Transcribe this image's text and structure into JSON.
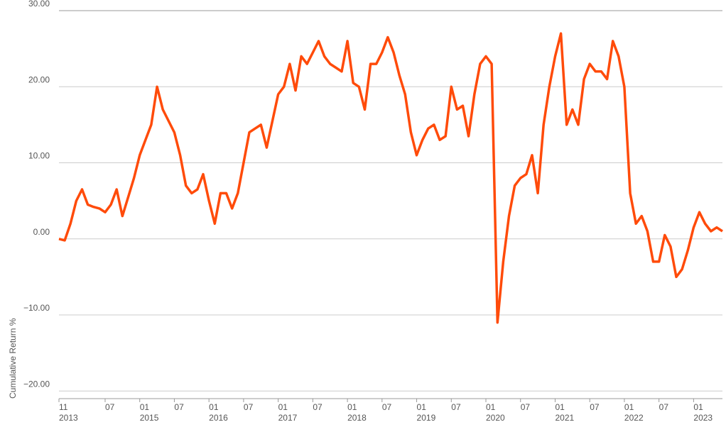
{
  "chart_data": {
    "type": "line",
    "y_label": "Cumulative Return %",
    "x": [
      "2013-11",
      "2013-12",
      "2014-01",
      "2014-02",
      "2014-03",
      "2014-04",
      "2014-05",
      "2014-06",
      "2014-07",
      "2014-08",
      "2014-09",
      "2014-10",
      "2014-11",
      "2014-12",
      "2015-01",
      "2015-02",
      "2015-03",
      "2015-04",
      "2015-05",
      "2015-06",
      "2015-07",
      "2015-08",
      "2015-09",
      "2015-10",
      "2015-11",
      "2015-12",
      "2016-01",
      "2016-02",
      "2016-03",
      "2016-04",
      "2016-05",
      "2016-06",
      "2016-07",
      "2016-08",
      "2016-09",
      "2016-10",
      "2016-11",
      "2016-12",
      "2017-01",
      "2017-02",
      "2017-03",
      "2017-04",
      "2017-05",
      "2017-06",
      "2017-07",
      "2017-08",
      "2017-09",
      "2017-10",
      "2017-11",
      "2017-12",
      "2018-01",
      "2018-02",
      "2018-03",
      "2018-04",
      "2018-05",
      "2018-06",
      "2018-07",
      "2018-08",
      "2018-09",
      "2018-10",
      "2018-11",
      "2018-12",
      "2019-01",
      "2019-02",
      "2019-03",
      "2019-04",
      "2019-05",
      "2019-06",
      "2019-07",
      "2019-08",
      "2019-09",
      "2019-10",
      "2019-11",
      "2019-12",
      "2020-01",
      "2020-02",
      "2020-03",
      "2020-04",
      "2020-05",
      "2020-06",
      "2020-07",
      "2020-08",
      "2020-09",
      "2020-10",
      "2020-11",
      "2020-12",
      "2021-01",
      "2021-02",
      "2021-03",
      "2021-04",
      "2021-05",
      "2021-06",
      "2021-07",
      "2021-08",
      "2021-09",
      "2021-10",
      "2021-11",
      "2021-12",
      "2022-01",
      "2022-02",
      "2022-03",
      "2022-04",
      "2022-05",
      "2022-06",
      "2022-07",
      "2022-08",
      "2022-09",
      "2022-10",
      "2022-11",
      "2022-12",
      "2023-01",
      "2023-02",
      "2023-03",
      "2023-04",
      "2023-05",
      "2023-06"
    ],
    "series": [
      {
        "color": "#ff4b0a",
        "values": [
          0,
          -0.2,
          2,
          5,
          6.5,
          4.5,
          4.2,
          4,
          3.5,
          4.5,
          6.5,
          3,
          5.5,
          8,
          11,
          13,
          15,
          20,
          17,
          15.5,
          14,
          11,
          7,
          6,
          6.5,
          8.5,
          5,
          2,
          6,
          6,
          4,
          6,
          10,
          14,
          14.5,
          15,
          12,
          15.5,
          19,
          20,
          23,
          19.5,
          24,
          23,
          24.5,
          26,
          24,
          23,
          22.5,
          22,
          26,
          20.5,
          20,
          17,
          23,
          23,
          24.5,
          26.5,
          24.5,
          21.5,
          19,
          14,
          11,
          13,
          14.5,
          15,
          13,
          13.5,
          20,
          17,
          17.5,
          13.5,
          19,
          23,
          24,
          23,
          -11,
          -3,
          3,
          7,
          8,
          8.5,
          11,
          6,
          15,
          20,
          24,
          27,
          15,
          17,
          15,
          21,
          23,
          22,
          22,
          21,
          26,
          24,
          20,
          6,
          2,
          3,
          1,
          -3,
          -3,
          0.5,
          -1,
          -5,
          -4,
          -1.5,
          1.5,
          3.5,
          2,
          1,
          1.5,
          1
        ]
      }
    ],
    "xlim": [
      "2013-11",
      "2023-06"
    ],
    "xticks": [
      {
        "value": "2013-11",
        "label": "11",
        "year": "2013"
      },
      {
        "value": "2014-07",
        "label": "07"
      },
      {
        "value": "2015-01",
        "label": "01",
        "year": "2015"
      },
      {
        "value": "2015-07",
        "label": "07"
      },
      {
        "value": "2016-01",
        "label": "01",
        "year": "2016"
      },
      {
        "value": "2016-07",
        "label": "07"
      },
      {
        "value": "2017-01",
        "label": "01",
        "year": "2017"
      },
      {
        "value": "2017-07",
        "label": "07"
      },
      {
        "value": "2018-01",
        "label": "01",
        "year": "2018"
      },
      {
        "value": "2018-07",
        "label": "07"
      },
      {
        "value": "2019-01",
        "label": "01",
        "year": "2019"
      },
      {
        "value": "2019-07",
        "label": "07"
      },
      {
        "value": "2020-01",
        "label": "01",
        "year": "2020"
      },
      {
        "value": "2020-07",
        "label": "07"
      },
      {
        "value": "2021-01",
        "label": "01",
        "year": "2021"
      },
      {
        "value": "2021-07",
        "label": "07"
      },
      {
        "value": "2022-01",
        "label": "01",
        "year": "2022"
      },
      {
        "value": "2022-07",
        "label": "07"
      },
      {
        "value": "2023-01",
        "label": "01",
        "year": "2023"
      }
    ],
    "ylim": [
      -21,
      30
    ],
    "yticks": [
      {
        "value": -20,
        "label": "−20.00"
      },
      {
        "value": -10,
        "label": "−10.00"
      },
      {
        "value": 0,
        "label": "0.00"
      },
      {
        "value": 10,
        "label": "10.00"
      },
      {
        "value": 20,
        "label": "20.00"
      },
      {
        "value": 30,
        "label": "30.00"
      }
    ],
    "grid": true
  }
}
